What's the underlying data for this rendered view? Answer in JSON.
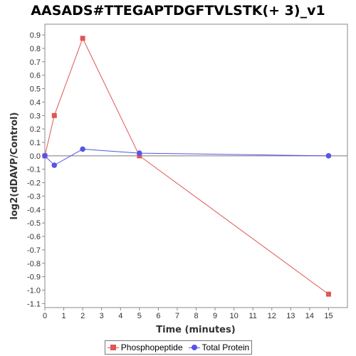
{
  "chart_data": {
    "type": "line",
    "title": "AASADS#TTEGAPTDGFTVLSTK(+ 3)_v1",
    "xlabel": "Time (minutes)",
    "ylabel": "log2(dDAVP/Control)",
    "xlim": [
      0,
      16
    ],
    "ylim": [
      -1.13,
      0.98
    ],
    "x_ticks": [
      0,
      1,
      2,
      3,
      4,
      5,
      6,
      7,
      8,
      9,
      10,
      11,
      12,
      13,
      14,
      15
    ],
    "y_ticks": [
      0.9,
      0.8,
      0.7,
      0.6,
      0.5,
      0.4,
      0.3,
      0.2,
      0.1,
      0.0,
      -0.1,
      -0.2,
      -0.3,
      -0.4,
      -0.5,
      -0.6,
      -0.7,
      -0.8,
      -0.9,
      -1.0,
      -1.1
    ],
    "y_tick_labels": [
      "0.9",
      "0.8",
      "0.7",
      "0.6",
      "0.5",
      "0.4",
      "0.3",
      "0.2",
      "0.1",
      "0.0",
      "-0.1",
      "-0.2",
      "-0.3",
      "-0.4",
      "-0.5",
      "-0.6",
      "-0.7",
      "-0.8",
      "-0.9",
      "-1.0",
      "-1.1"
    ],
    "series": [
      {
        "name": "Phosphopeptide",
        "color": "#e05555",
        "marker": "square",
        "x": [
          0,
          0.5,
          2,
          5,
          15
        ],
        "y": [
          0.0,
          0.3,
          0.875,
          0.0,
          -1.03
        ]
      },
      {
        "name": "Total Protein",
        "color": "#5555e6",
        "marker": "circle",
        "x": [
          0,
          0.5,
          2,
          5,
          15
        ],
        "y": [
          0.0,
          -0.07,
          0.05,
          0.02,
          0.0
        ]
      }
    ],
    "grid": false,
    "legend_position": "bottom"
  }
}
